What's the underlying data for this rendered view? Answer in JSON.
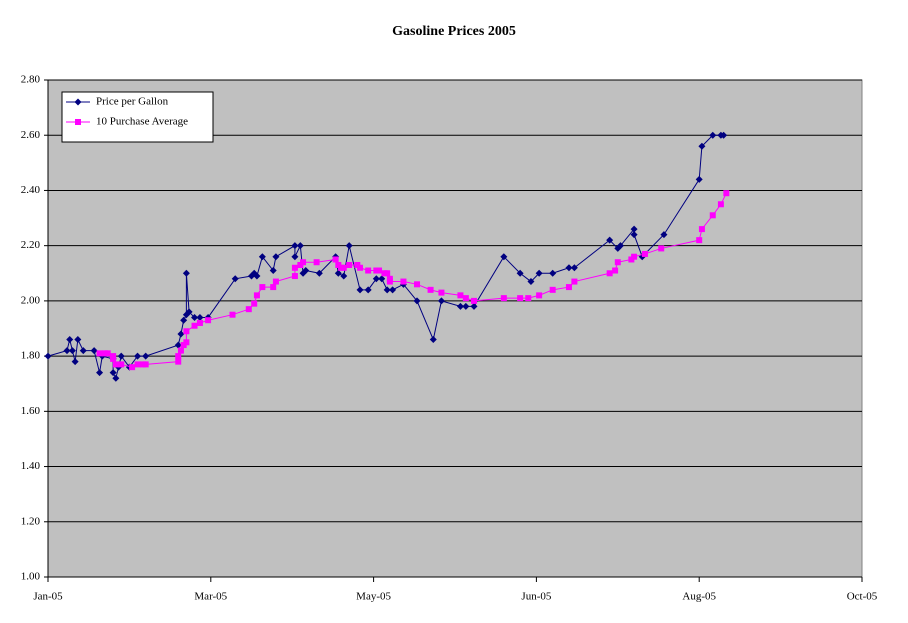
{
  "chart_data": {
    "type": "line",
    "title": "Gasoline Prices 2005",
    "xlim": [
      0,
      300
    ],
    "xticks": [
      {
        "value": 0,
        "label": "Jan-05"
      },
      {
        "value": 60,
        "label": "Mar-05"
      },
      {
        "value": 120,
        "label": "May-05"
      },
      {
        "value": 180,
        "label": "Jun-05"
      },
      {
        "value": 240,
        "label": "Aug-05"
      },
      {
        "value": 300,
        "label": "Oct-05"
      }
    ],
    "ylim": [
      1,
      2.8
    ],
    "yticks": [
      {
        "value": 1,
        "label": "1.00"
      },
      {
        "value": 1.2,
        "label": "1.20"
      },
      {
        "value": 1.4,
        "label": "1.40"
      },
      {
        "value": 1.6,
        "label": "1.60"
      },
      {
        "value": 1.8,
        "label": "1.80"
      },
      {
        "value": 2,
        "label": "2.00"
      },
      {
        "value": 2.2,
        "label": "2.20"
      },
      {
        "value": 2.4,
        "label": "2.40"
      },
      {
        "value": 2.6,
        "label": "2.60"
      },
      {
        "value": 2.8,
        "label": "2.80"
      }
    ],
    "grid": true,
    "legend": "upper-left",
    "background": "#c0c0c0",
    "series": [
      {
        "name": "Price per Gallon",
        "color": "#000080",
        "marker": "diamond",
        "x": [
          0,
          7,
          8,
          9,
          10,
          11,
          13,
          17,
          19,
          20,
          24,
          24,
          25,
          26,
          27,
          30,
          33,
          36,
          48,
          49,
          50,
          51,
          51,
          52,
          54,
          56,
          59,
          69,
          75,
          76,
          77,
          79,
          83,
          84,
          91,
          91,
          93,
          94,
          95,
          100,
          106,
          107,
          109,
          111,
          115,
          118,
          121,
          123,
          125,
          127,
          131,
          136,
          142,
          145,
          152,
          154,
          157,
          168,
          174,
          178,
          181,
          186,
          192,
          194,
          207,
          210,
          211,
          216,
          216,
          219,
          227,
          240,
          241,
          245,
          248,
          249
        ],
        "values": [
          1.8,
          1.82,
          1.86,
          1.82,
          1.78,
          1.86,
          1.82,
          1.82,
          1.74,
          1.8,
          1.79,
          1.74,
          1.72,
          1.76,
          1.8,
          1.76,
          1.8,
          1.8,
          1.84,
          1.88,
          1.93,
          1.95,
          2.1,
          1.96,
          1.94,
          1.94,
          1.94,
          2.08,
          2.09,
          2.1,
          2.09,
          2.16,
          2.11,
          2.16,
          2.2,
          2.16,
          2.2,
          2.1,
          2.11,
          2.1,
          2.16,
          2.1,
          2.09,
          2.2,
          2.04,
          2.04,
          2.08,
          2.08,
          2.04,
          2.04,
          2.06,
          2.0,
          1.86,
          2.0,
          1.98,
          1.98,
          1.98,
          2.16,
          2.1,
          2.07,
          2.1,
          2.1,
          2.12,
          2.12,
          2.22,
          2.19,
          2.2,
          2.26,
          2.24,
          2.16,
          2.24,
          2.44,
          2.56,
          2.6,
          2.6,
          2.6
        ]
      },
      {
        "name": "10 Purchase Average",
        "color": "#ff00ff",
        "marker": "square",
        "x": [
          19,
          21,
          22,
          24,
          24,
          25,
          27,
          31,
          33,
          35,
          36,
          48,
          48,
          49,
          50,
          51,
          51,
          54,
          56,
          59,
          68,
          74,
          76,
          77,
          79,
          83,
          84,
          91,
          91,
          93,
          94,
          99,
          106,
          107,
          108,
          109,
          111,
          114,
          115,
          118,
          121,
          122,
          124,
          125,
          126,
          126,
          131,
          136,
          141,
          145,
          152,
          154,
          157,
          168,
          174,
          177,
          181,
          186,
          192,
          194,
          207,
          209,
          210,
          215,
          216,
          220,
          226,
          240,
          241,
          245,
          248,
          250
        ],
        "values": [
          1.81,
          1.81,
          1.81,
          1.8,
          1.79,
          1.77,
          1.77,
          1.76,
          1.77,
          1.77,
          1.77,
          1.78,
          1.8,
          1.82,
          1.84,
          1.85,
          1.89,
          1.91,
          1.92,
          1.93,
          1.95,
          1.97,
          1.99,
          2.02,
          2.05,
          2.05,
          2.07,
          2.09,
          2.12,
          2.13,
          2.14,
          2.14,
          2.15,
          2.13,
          2.12,
          2.12,
          2.13,
          2.13,
          2.12,
          2.11,
          2.11,
          2.11,
          2.1,
          2.1,
          2.08,
          2.07,
          2.07,
          2.06,
          2.04,
          2.03,
          2.02,
          2.01,
          2.0,
          2.01,
          2.01,
          2.01,
          2.02,
          2.04,
          2.05,
          2.07,
          2.1,
          2.11,
          2.14,
          2.15,
          2.16,
          2.17,
          2.19,
          2.22,
          2.26,
          2.31,
          2.35,
          2.39
        ]
      }
    ]
  }
}
